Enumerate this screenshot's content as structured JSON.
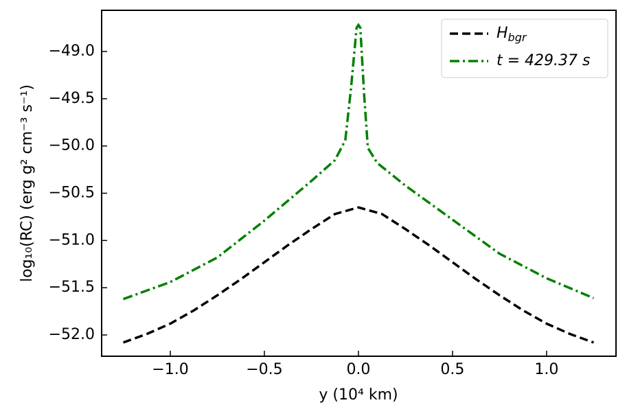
{
  "chart_data": {
    "type": "line",
    "xlabel": "y (10⁴ km)",
    "ylabel": "log₁₀(RC) (erg g² cm⁻³ s⁻¹)",
    "xlim": [
      -1.365,
      1.369
    ],
    "ylim": [
      -52.225,
      -48.564
    ],
    "xticks": [
      {
        "value": -1.0,
        "label": "−1.0"
      },
      {
        "value": -0.5,
        "label": "−0.5"
      },
      {
        "value": 0.0,
        "label": "0.0"
      },
      {
        "value": 0.5,
        "label": "0.5"
      },
      {
        "value": 1.0,
        "label": "1.0"
      }
    ],
    "yticks": [
      {
        "value": -52.0,
        "label": "−52.0"
      },
      {
        "value": -51.5,
        "label": "−51.5"
      },
      {
        "value": -51.0,
        "label": "−51.0"
      },
      {
        "value": -50.5,
        "label": "−50.5"
      },
      {
        "value": -50.0,
        "label": "−50.0"
      },
      {
        "value": -49.5,
        "label": "−49.5"
      },
      {
        "value": -49.0,
        "label": "−49.0"
      }
    ],
    "legend": "upper right",
    "series": [
      {
        "name": "H_bgr",
        "color": "#000000",
        "dash": "12 6",
        "x": [
          -1.25,
          -1.125,
          -1.0,
          -0.875,
          -0.75,
          -0.625,
          -0.5,
          -0.375,
          -0.25,
          -0.125,
          0.0,
          0.125,
          0.25,
          0.375,
          0.5,
          0.625,
          0.75,
          0.875,
          1.0,
          1.125,
          1.25
        ],
        "values": [
          -52.08,
          -51.99,
          -51.88,
          -51.74,
          -51.58,
          -51.41,
          -51.23,
          -51.05,
          -50.88,
          -50.72,
          -50.65,
          -50.72,
          -50.88,
          -51.05,
          -51.23,
          -51.41,
          -51.58,
          -51.74,
          -51.88,
          -51.99,
          -52.08
        ]
      },
      {
        "name": "t = 429.37 s",
        "color": "#008000",
        "dash": "14 5 3 5",
        "x": [
          -1.25,
          -1.0,
          -0.75,
          -0.5,
          -0.25,
          -0.125,
          -0.07,
          -0.04,
          -0.01,
          0.0,
          0.01,
          0.03,
          0.05,
          0.1,
          0.25,
          0.5,
          0.75,
          1.0,
          1.25
        ],
        "values": [
          -51.62,
          -51.44,
          -51.18,
          -50.79,
          -50.37,
          -50.15,
          -49.94,
          -49.4,
          -48.75,
          -48.72,
          -48.75,
          -49.45,
          -50.02,
          -50.18,
          -50.42,
          -50.78,
          -51.14,
          -51.4,
          -51.61
        ]
      }
    ]
  }
}
